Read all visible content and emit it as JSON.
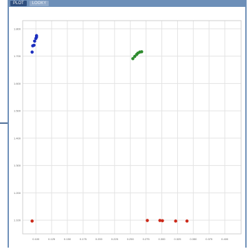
{
  "window": {
    "tabs": [
      "PLOT",
      "LOOKY"
    ]
  },
  "chart_data": {
    "type": "scatter",
    "xlim": [
      0.079,
      0.426
    ],
    "ylim": [
      1.05,
      1.83
    ],
    "x_ticks": [
      0.1,
      0.125,
      0.15,
      0.175,
      0.2,
      0.225,
      0.25,
      0.275,
      0.3,
      0.325,
      0.35,
      0.375,
      0.4
    ],
    "y_ticks": [
      1.1,
      1.2,
      1.3,
      1.4,
      1.5,
      1.6,
      1.7,
      1.8
    ],
    "xlabel": "",
    "ylabel": "",
    "grid": true,
    "series": [
      {
        "color": "#1c2fbf",
        "points": [
          [
            0.098,
            1.755
          ],
          [
            0.1,
            1.765
          ],
          [
            0.101,
            1.775
          ],
          [
            0.101,
            1.77
          ],
          [
            0.097,
            1.74
          ],
          [
            0.095,
            1.738
          ],
          [
            0.094,
            1.715
          ]
        ]
      },
      {
        "color": "#2e8b2e",
        "points": [
          [
            0.254,
            1.691
          ],
          [
            0.257,
            1.699
          ],
          [
            0.26,
            1.706
          ],
          [
            0.262,
            1.711
          ],
          [
            0.265,
            1.715
          ],
          [
            0.268,
            1.716
          ]
        ]
      },
      {
        "color": "#cc2a1a",
        "points": [
          [
            0.094,
            1.097
          ],
          [
            0.277,
            1.099
          ],
          [
            0.297,
            1.099
          ],
          [
            0.301,
            1.098
          ],
          [
            0.322,
            1.097
          ],
          [
            0.34,
            1.097
          ]
        ]
      }
    ]
  }
}
